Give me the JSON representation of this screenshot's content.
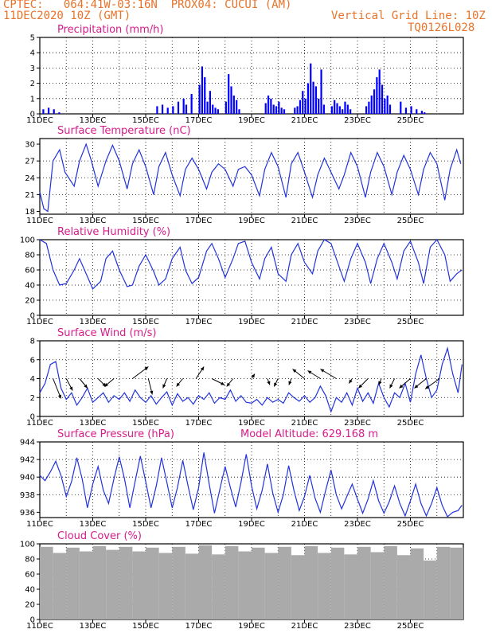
{
  "header": {
    "line1": "CPTEC:   064:41W-03:16N  PROX04: CUCUI (AM)",
    "line2": "11DEC2020 10Z (GMT)",
    "grid_note": "Vertical Grid Line: 10Z",
    "run_id": "TQ0126L028"
  },
  "panel_titles": {
    "precip": "Precipitation  (mm/h)",
    "temp": "Surface Temperature (nC)",
    "rh": "Relative Humidity  (%)",
    "wind": "Surface Wind  (m/s)",
    "pres": "Surface Pressure (hPa)",
    "alt": "Model Altitude: 629.168  m",
    "cloud": "Cloud Cover  (%)"
  },
  "colors": {
    "header": "#e8732a",
    "title": "#d81b8a",
    "line": "#2233dd",
    "bar": "#0000ff",
    "cloud": "#aaaaaa"
  },
  "chart_data": [
    {
      "type": "bar",
      "id": "precip",
      "x_labels": [
        "11DEC",
        "13DEC",
        "15DEC",
        "17DEC",
        "19DEC",
        "21DEC",
        "23DEC",
        "25DEC"
      ],
      "ylim": [
        0,
        5
      ],
      "yticks": [
        0,
        1,
        2,
        3,
        4,
        5
      ],
      "x": [
        0.1,
        0.3,
        0.5,
        0.7,
        4.4,
        4.6,
        4.8,
        5.0,
        5.2,
        5.4,
        5.5,
        5.7,
        6.0,
        6.1,
        6.2,
        6.3,
        6.4,
        6.5,
        6.6,
        6.7,
        7.0,
        7.1,
        7.2,
        7.3,
        7.4,
        7.5,
        8.5,
        8.6,
        8.7,
        8.8,
        8.9,
        9.0,
        9.1,
        9.2,
        9.6,
        9.7,
        9.8,
        9.9,
        10.0,
        10.1,
        10.2,
        10.3,
        10.4,
        10.5,
        10.6,
        10.7,
        11.0,
        11.1,
        11.2,
        11.3,
        11.4,
        11.5,
        11.6,
        11.7,
        12.3,
        12.4,
        12.5,
        12.6,
        12.7,
        12.8,
        12.9,
        13.0,
        13.1,
        13.2,
        13.6,
        13.8,
        14.0,
        14.2,
        14.4,
        14.5
      ],
      "values": [
        0.3,
        0.4,
        0.3,
        0.1,
        0.5,
        0.6,
        0.4,
        0.5,
        0.8,
        1.0,
        0.6,
        1.3,
        1.9,
        3.1,
        2.4,
        0.8,
        1.5,
        0.6,
        0.4,
        0.3,
        0.8,
        2.6,
        1.8,
        1.2,
        0.9,
        0.3,
        0.7,
        1.2,
        1.0,
        0.6,
        0.5,
        0.8,
        0.4,
        0.3,
        0.4,
        0.5,
        0.9,
        1.5,
        1.0,
        2.0,
        3.3,
        2.1,
        1.8,
        1.0,
        2.9,
        0.6,
        0.5,
        0.9,
        0.7,
        0.5,
        0.3,
        0.8,
        0.6,
        0.3,
        0.5,
        0.8,
        1.2,
        1.6,
        2.4,
        2.9,
        1.9,
        1.0,
        1.2,
        0.6,
        0.8,
        0.4,
        0.5,
        0.3,
        0.2,
        0.1
      ]
    },
    {
      "type": "line",
      "id": "temp",
      "x_labels": [
        "11DEC",
        "13DEC",
        "15DEC",
        "17DEC",
        "19DEC",
        "21DEC",
        "23DEC",
        "25DEC"
      ],
      "ylim": [
        17.5,
        31
      ],
      "yticks": [
        18,
        21,
        24,
        27,
        30
      ],
      "x": [
        0,
        0.15,
        0.3,
        0.5,
        0.75,
        0.95,
        1.3,
        1.5,
        1.75,
        1.95,
        2.2,
        2.5,
        2.75,
        3.0,
        3.3,
        3.5,
        3.75,
        4.0,
        4.3,
        4.5,
        4.75,
        5.0,
        5.3,
        5.5,
        5.75,
        6.0,
        6.3,
        6.5,
        6.75,
        7.0,
        7.3,
        7.5,
        7.75,
        8.0,
        8.3,
        8.5,
        8.75,
        9.0,
        9.3,
        9.5,
        9.75,
        10.0,
        10.3,
        10.5,
        10.75,
        11.0,
        11.3,
        11.5,
        11.75,
        12.0,
        12.3,
        12.5,
        12.75,
        13.0,
        13.3,
        13.5,
        13.75,
        14.0,
        14.3,
        14.5,
        14.75,
        15.0,
        15.3,
        15.5,
        15.75,
        15.9
      ],
      "values": [
        21.5,
        18.5,
        18.0,
        27.0,
        29.0,
        25.0,
        22.5,
        27.0,
        30.0,
        27.0,
        22.5,
        27.0,
        29.8,
        27.0,
        22.0,
        26.5,
        29.0,
        26.0,
        21.0,
        26.0,
        28.5,
        24.5,
        20.8,
        25.5,
        27.5,
        25.5,
        22.0,
        25.0,
        26.5,
        25.5,
        22.5,
        25.5,
        26.0,
        24.5,
        20.8,
        25.5,
        28.5,
        26.0,
        20.5,
        26.5,
        28.5,
        25.0,
        20.5,
        24.5,
        27.5,
        25.0,
        22.0,
        24.5,
        28.5,
        26.0,
        20.5,
        25.0,
        28.5,
        26.0,
        21.0,
        25.0,
        28.0,
        25.5,
        21.0,
        25.5,
        28.5,
        26.5,
        20.0,
        25.5,
        29.0,
        26.5
      ]
    },
    {
      "type": "line",
      "id": "rh",
      "x_labels": [
        "11DEC",
        "13DEC",
        "15DEC",
        "17DEC",
        "19DEC",
        "21DEC",
        "23DEC",
        "25DEC"
      ],
      "ylim": [
        0,
        100
      ],
      "yticks": [
        0,
        20,
        40,
        60,
        80,
        100
      ],
      "x": [
        0,
        0.25,
        0.5,
        0.75,
        1.0,
        1.3,
        1.5,
        1.75,
        2.0,
        2.3,
        2.5,
        2.75,
        3.0,
        3.3,
        3.5,
        3.75,
        4.0,
        4.3,
        4.5,
        4.75,
        5.0,
        5.3,
        5.5,
        5.75,
        6.0,
        6.3,
        6.5,
        6.75,
        7.0,
        7.3,
        7.5,
        7.75,
        8.0,
        8.3,
        8.5,
        8.75,
        9.0,
        9.3,
        9.5,
        9.75,
        10.0,
        10.3,
        10.5,
        10.75,
        11.0,
        11.3,
        11.5,
        11.75,
        12.0,
        12.3,
        12.5,
        12.75,
        13.0,
        13.3,
        13.5,
        13.75,
        14.0,
        14.3,
        14.5,
        14.75,
        15.0,
        15.3,
        15.5,
        15.75,
        15.95
      ],
      "values": [
        100,
        95,
        60,
        40,
        42,
        60,
        75,
        55,
        35,
        45,
        75,
        85,
        60,
        38,
        40,
        65,
        80,
        58,
        40,
        48,
        75,
        90,
        60,
        42,
        50,
        85,
        95,
        75,
        50,
        75,
        95,
        98,
        70,
        48,
        75,
        90,
        55,
        45,
        80,
        95,
        70,
        55,
        85,
        100,
        95,
        65,
        45,
        75,
        95,
        70,
        42,
        75,
        95,
        70,
        48,
        85,
        98,
        70,
        42,
        90,
        100,
        80,
        45,
        55,
        60
      ]
    },
    {
      "type": "line",
      "id": "wind",
      "x_labels": [
        "11DEC",
        "13DEC",
        "15DEC",
        "17DEC",
        "19DEC",
        "21DEC",
        "23DEC",
        "25DEC"
      ],
      "ylim": [
        0,
        8
      ],
      "yticks": [
        0,
        2,
        4,
        6,
        8
      ],
      "x": [
        0,
        0.2,
        0.4,
        0.6,
        0.8,
        1.0,
        1.2,
        1.4,
        1.6,
        1.8,
        2.0,
        2.2,
        2.4,
        2.6,
        2.8,
        3.0,
        3.2,
        3.4,
        3.6,
        3.8,
        4.0,
        4.2,
        4.4,
        4.6,
        4.8,
        5.0,
        5.2,
        5.4,
        5.6,
        5.8,
        6.0,
        6.2,
        6.4,
        6.6,
        6.8,
        7.0,
        7.2,
        7.4,
        7.6,
        7.8,
        8.0,
        8.2,
        8.4,
        8.6,
        8.8,
        9.0,
        9.2,
        9.4,
        9.6,
        9.8,
        10.0,
        10.2,
        10.4,
        10.6,
        10.8,
        11.0,
        11.2,
        11.4,
        11.6,
        11.8,
        12.0,
        12.2,
        12.4,
        12.6,
        12.8,
        13.0,
        13.2,
        13.4,
        13.6,
        13.8,
        14.0,
        14.2,
        14.4,
        14.6,
        14.8,
        15.0,
        15.2,
        15.4,
        15.6,
        15.8,
        15.95
      ],
      "values": [
        2.5,
        3.5,
        5.5,
        5.8,
        3.0,
        1.8,
        2.5,
        1.2,
        2.0,
        3.0,
        1.5,
        2.0,
        2.5,
        1.5,
        2.2,
        1.8,
        2.5,
        1.6,
        2.8,
        2.0,
        1.5,
        2.2,
        1.3,
        2.0,
        2.6,
        1.2,
        2.4,
        1.6,
        2.0,
        1.3,
        2.2,
        1.8,
        2.5,
        1.4,
        2.0,
        1.8,
        2.8,
        1.6,
        2.2,
        1.5,
        1.4,
        1.8,
        1.2,
        2.0,
        1.5,
        1.8,
        1.4,
        2.5,
        2.0,
        1.6,
        2.2,
        1.5,
        2.0,
        3.2,
        2.2,
        0.5,
        2.0,
        1.5,
        2.5,
        1.2,
        3.0,
        1.6,
        2.5,
        1.4,
        3.5,
        2.0,
        1.0,
        2.5,
        2.0,
        3.5,
        1.5,
        4.5,
        6.5,
        4.0,
        2.0,
        2.8,
        5.5,
        7.2,
        4.5,
        2.5,
        5.5
      ]
    },
    {
      "type": "line",
      "id": "pres",
      "x_labels": [
        "11DEC",
        "13DEC",
        "15DEC",
        "17DEC",
        "19DEC",
        "21DEC",
        "23DEC",
        "25DEC"
      ],
      "ylim": [
        935.4,
        944
      ],
      "yticks": [
        936,
        938,
        940,
        942,
        944
      ],
      "x": [
        0,
        0.2,
        0.4,
        0.6,
        0.8,
        1.0,
        1.2,
        1.4,
        1.6,
        1.8,
        2.0,
        2.2,
        2.4,
        2.6,
        2.8,
        3.0,
        3.2,
        3.4,
        3.6,
        3.8,
        4.0,
        4.2,
        4.4,
        4.6,
        4.8,
        5.0,
        5.2,
        5.4,
        5.6,
        5.8,
        6.0,
        6.2,
        6.4,
        6.6,
        6.8,
        7.0,
        7.2,
        7.4,
        7.6,
        7.8,
        8.0,
        8.2,
        8.4,
        8.6,
        8.8,
        9.0,
        9.2,
        9.4,
        9.6,
        9.8,
        10.0,
        10.2,
        10.4,
        10.6,
        10.8,
        11.0,
        11.2,
        11.4,
        11.6,
        11.8,
        12.0,
        12.2,
        12.4,
        12.6,
        12.8,
        13.0,
        13.2,
        13.4,
        13.6,
        13.8,
        14.0,
        14.2,
        14.4,
        14.6,
        14.8,
        15.0,
        15.2,
        15.4,
        15.6,
        15.8,
        15.95
      ],
      "values": [
        940.2,
        939.6,
        940.6,
        941.8,
        940.2,
        937.8,
        939.5,
        942.2,
        939.8,
        936.5,
        939.2,
        941.2,
        938.5,
        937.0,
        939.8,
        942.3,
        939.8,
        936.5,
        939.5,
        942.4,
        939.5,
        936.5,
        939.0,
        942.2,
        939.4,
        936.5,
        938.8,
        941.9,
        939.0,
        936.3,
        938.8,
        942.8,
        939.2,
        935.9,
        938.6,
        941.2,
        938.8,
        936.6,
        939.4,
        942.6,
        939.0,
        936.4,
        938.5,
        941.5,
        938.2,
        936.0,
        938.0,
        941.3,
        938.5,
        936.2,
        937.8,
        940.2,
        937.6,
        936.0,
        938.5,
        940.8,
        938.0,
        936.4,
        937.8,
        939.2,
        937.5,
        935.9,
        937.5,
        939.6,
        937.3,
        935.9,
        937.2,
        939.0,
        937.0,
        935.6,
        937.3,
        939.2,
        937.0,
        935.6,
        937.0,
        938.8,
        936.8,
        935.5,
        936.0,
        936.2,
        936.8
      ]
    },
    {
      "type": "bar",
      "id": "cloud",
      "x_labels": [
        "11DEC",
        "13DEC",
        "15DEC",
        "17DEC",
        "19DEC",
        "21DEC",
        "23DEC",
        "25DEC"
      ],
      "ylim": [
        0,
        100
      ],
      "yticks": [
        0,
        20,
        40,
        60,
        80,
        100
      ],
      "x": [
        0,
        0.5,
        1.0,
        1.5,
        2.0,
        2.5,
        3.0,
        3.5,
        4.0,
        4.5,
        5.0,
        5.5,
        6.0,
        6.5,
        7.0,
        7.5,
        8.0,
        8.5,
        9.0,
        9.5,
        10.0,
        10.5,
        11.0,
        11.5,
        12.0,
        12.5,
        13.0,
        13.5,
        14.0,
        14.5,
        15.0,
        15.5
      ],
      "values": [
        96,
        88,
        95,
        90,
        97,
        92,
        96,
        90,
        95,
        88,
        96,
        87,
        98,
        86,
        97,
        90,
        95,
        88,
        96,
        85,
        97,
        88,
        95,
        86,
        96,
        89,
        97,
        85,
        94,
        78,
        96,
        95
      ]
    }
  ],
  "wind_vectors": {
    "x": [
      0.5,
      1.0,
      1.5,
      2.2,
      2.8,
      3.5,
      4.1,
      4.8,
      5.4,
      5.9,
      6.5,
      7.3,
      8.0,
      8.6,
      9.0,
      9.5,
      10.0,
      10.6,
      11.2,
      11.8,
      12.4,
      12.9,
      13.4,
      14.0,
      14.6,
      15.1
    ],
    "u": [
      1.0,
      0.8,
      1.0,
      1.0,
      -1.2,
      2.0,
      0.5,
      -0.5,
      -0.8,
      1.0,
      1.6,
      -0.8,
      0.4,
      0.3,
      -0.5,
      -0.3,
      -1.5,
      -1.6,
      -2.0,
      -0.4,
      -1.2,
      -0.3,
      -0.6,
      -1.4,
      -1.5,
      -1.8
    ],
    "v": [
      -2.5,
      -1.5,
      -1.2,
      -1.0,
      -1.0,
      1.5,
      -2.0,
      -1.2,
      -1.0,
      1.5,
      -0.8,
      -1.0,
      0.6,
      -0.8,
      -1.0,
      -0.8,
      1.2,
      1.0,
      1.2,
      -0.6,
      -1.2,
      -0.8,
      -1.2,
      -1.2,
      -1.2,
      -1.3
    ]
  }
}
